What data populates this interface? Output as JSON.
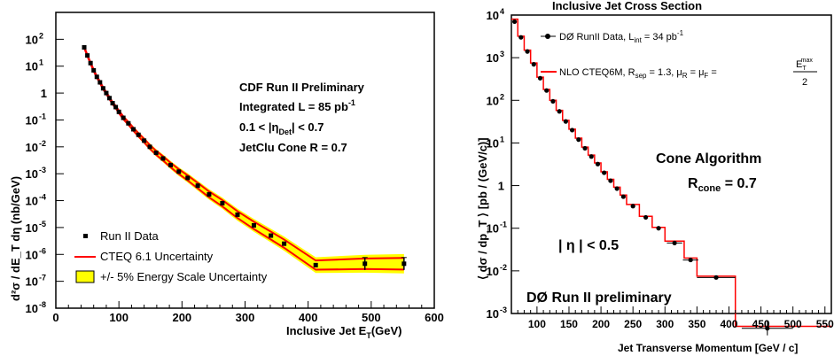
{
  "chart_data": [
    {
      "type": "scatter",
      "log_y": true,
      "xlabel_main": "Inclusive Jet E",
      "xlabel_sub": "T",
      "xlabel_unit": "(GeV)",
      "ylabel": "d²σ / dE_T dη (nb/GeV)",
      "xlim": [
        0,
        600
      ],
      "ylim": [
        1e-08,
        1000
      ],
      "x_ticks": [
        0,
        100,
        200,
        300,
        400,
        500,
        600
      ],
      "y_ticks": [
        {
          "exp": 2,
          "label": "10"
        },
        {
          "exp": 1,
          "label": "10"
        },
        {
          "exp": 0,
          "label": "1"
        },
        {
          "exp": -1,
          "label": "10"
        },
        {
          "exp": -2,
          "label": "10"
        },
        {
          "exp": -3,
          "label": "10"
        },
        {
          "exp": -4,
          "label": "10"
        },
        {
          "exp": -5,
          "label": "10"
        },
        {
          "exp": -6,
          "label": "10"
        },
        {
          "exp": -7,
          "label": "10"
        },
        {
          "exp": -8,
          "label": "10"
        }
      ],
      "annotations": {
        "line1": "CDF Run II Preliminary",
        "line2": "Integrated L = 85 pb",
        "line2_sup": "-1",
        "line3a": "0.1 < |η",
        "line3_sub": "Det",
        "line3b": "| < 0.7",
        "line4": "JetClu Cone R = 0.7"
      },
      "legend": [
        {
          "label": "Run II Data",
          "color": "#000000",
          "kind": "marker"
        },
        {
          "label": "CTEQ 6.1 Uncertainty",
          "color": "#ff0000",
          "kind": "line"
        },
        {
          "label": "+/- 5% Energy Scale Uncertainty",
          "color": "#ffff00",
          "kind": "box"
        }
      ],
      "series": [
        {
          "name": "Run II Data",
          "color": "#000000",
          "x": [
            45,
            50,
            55,
            60,
            65,
            70,
            75,
            80,
            85,
            90,
            95,
            100,
            107,
            115,
            123,
            131,
            140,
            149,
            159,
            170,
            182,
            195,
            209,
            225,
            243,
            264,
            288,
            314,
            341,
            362,
            412,
            490,
            552
          ],
          "y": [
            50,
            25,
            13,
            7,
            4,
            2.5,
            1.5,
            1.0,
            0.65,
            0.42,
            0.3,
            0.2,
            0.12,
            0.075,
            0.045,
            0.028,
            0.017,
            0.01,
            0.006,
            0.0037,
            0.0021,
            0.0012,
            0.0007,
            0.00036,
            0.00017,
            8e-05,
            3e-05,
            1.2e-05,
            5e-06,
            2.5e-06,
            4e-07,
            4.5e-07,
            4.5e-07
          ]
        }
      ],
      "bands": {
        "energy_scale": {
          "color": "#ffff00"
        },
        "cteq": {
          "color": "#ff0000"
        }
      }
    },
    {
      "type": "scatter",
      "log_y": true,
      "title": "Inclusive Jet Cross Section",
      "xlabel": "Jet Transverse Momentum [GeV / c]",
      "ylabel": "⟨ dσ / dp_T ⟩ [pb / (GeV/c)]",
      "xlim": [
        60,
        560
      ],
      "ylim": [
        0.001,
        10000
      ],
      "x_ticks": [
        100,
        150,
        200,
        250,
        300,
        350,
        400,
        450,
        500,
        550
      ],
      "y_ticks": [
        {
          "exp": 4,
          "label": "10"
        },
        {
          "exp": 3,
          "label": "10"
        },
        {
          "exp": 2,
          "label": "10"
        },
        {
          "exp": 1,
          "label": "10"
        },
        {
          "exp": 0,
          "label": "1"
        },
        {
          "exp": -1,
          "label": "10"
        },
        {
          "exp": -2,
          "label": "10"
        },
        {
          "exp": -3,
          "label": "10"
        }
      ],
      "annotations": {
        "cone_title": "Cone Algorithm",
        "rcone": "R",
        "rcone_sub": "cone",
        "rcone_val": " = 0.7",
        "eta_cut": "| η | < 0.5",
        "prelim": "DØ Run II preliminary"
      },
      "legend": [
        {
          "label": "DØ RunII Data, L",
          "sub": "int",
          "rest": " = 34 pb",
          "sup": "-1",
          "color": "#000000"
        },
        {
          "label": "NLO CTEQ6M,  R",
          "sub": "sep",
          "rest": " = 1.3,  μ",
          "sub2": "R",
          "rest2": " = μ",
          "sub3": "F",
          "rest3": " =",
          "frac_num": "E",
          "frac_num_sub": "T",
          "frac_num_sup": "max",
          "frac_den": "2",
          "color": "#ff0000"
        }
      ],
      "series": [
        {
          "name": "DØ RunII Data",
          "color": "#000000",
          "x": [
            65,
            75,
            85,
            95,
            105,
            115,
            125,
            135,
            145,
            155,
            165,
            175,
            185,
            195,
            205,
            215,
            225,
            235,
            250,
            270,
            290,
            315,
            340,
            380,
            460
          ],
          "y": [
            7000,
            3000,
            1400,
            700,
            330,
            170,
            95,
            55,
            32,
            20,
            12,
            7.5,
            4.8,
            3.2,
            2.0,
            1.3,
            0.85,
            0.55,
            0.33,
            0.18,
            0.1,
            0.045,
            0.018,
            0.007,
            0.00045
          ]
        },
        {
          "name": "NLO CTEQ6M",
          "color": "#ff0000",
          "bin_edges": [
            60,
            70,
            80,
            90,
            100,
            110,
            120,
            130,
            140,
            150,
            160,
            170,
            180,
            190,
            200,
            210,
            220,
            230,
            240,
            260,
            280,
            300,
            330,
            350,
            410,
            560
          ],
          "values": [
            8000,
            3200,
            1500,
            750,
            350,
            180,
            100,
            58,
            34,
            21,
            13,
            8,
            5.2,
            3.4,
            2.1,
            1.4,
            0.92,
            0.6,
            0.36,
            0.19,
            0.105,
            0.05,
            0.02,
            0.0075,
            0.0005
          ]
        }
      ]
    }
  ]
}
